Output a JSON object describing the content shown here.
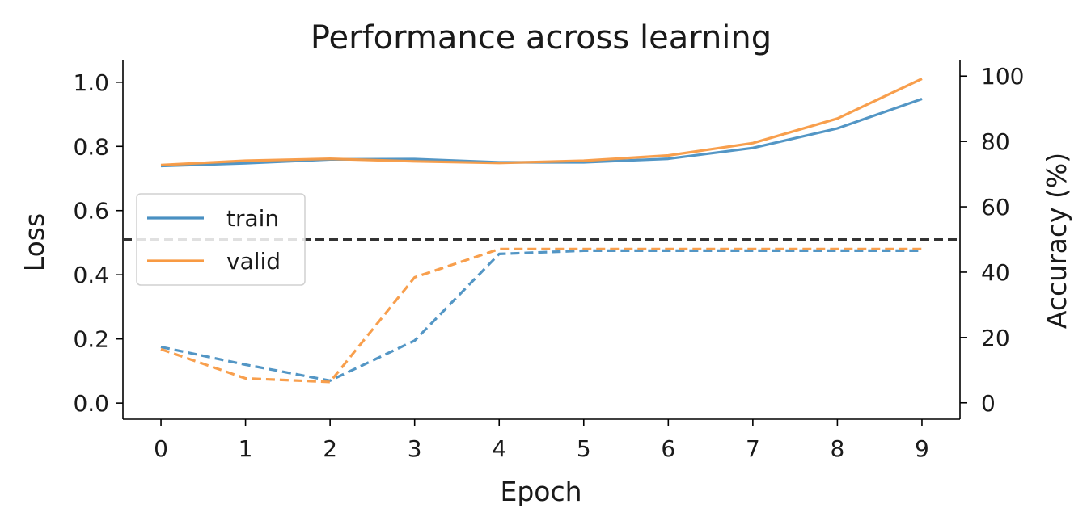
{
  "chart_data": {
    "type": "line",
    "title": "Performance across learning",
    "xlabel": "Epoch",
    "ylabel": "Loss",
    "y2label": "Accuracy (%)",
    "x": [
      0,
      1,
      2,
      3,
      4,
      5,
      6,
      7,
      8,
      9
    ],
    "xticks": [
      0,
      1,
      2,
      3,
      4,
      5,
      6,
      7,
      8,
      9
    ],
    "ylim": [
      -0.05,
      1.07
    ],
    "y2lim": [
      -5,
      105
    ],
    "yticks": [
      "0.0",
      "0.2",
      "0.4",
      "0.6",
      "0.8",
      "1.0"
    ],
    "y2ticks": [
      "0",
      "20",
      "40",
      "60",
      "80",
      "100"
    ],
    "reference_line": {
      "axis": "right",
      "value": 50,
      "style": "dashed",
      "color": "#333333"
    },
    "series": [
      {
        "name": "train",
        "axis": "left",
        "style": "dashed",
        "color": "#4a90c2",
        "values": [
          0.175,
          0.12,
          0.07,
          0.195,
          0.465,
          0.475,
          0.475,
          0.475,
          0.475,
          0.475
        ]
      },
      {
        "name": "valid",
        "axis": "left",
        "style": "dashed",
        "color": "#f89a43",
        "values": [
          0.168,
          0.077,
          0.066,
          0.392,
          0.48,
          0.48,
          0.48,
          0.48,
          0.48,
          0.48
        ]
      },
      {
        "axis": "right",
        "style": "solid",
        "color": "#4a90c2",
        "values": [
          72.5,
          73.3,
          74.5,
          74.6,
          73.6,
          73.6,
          74.7,
          78,
          84,
          93
        ]
      },
      {
        "axis": "right",
        "style": "solid",
        "color": "#f89a43",
        "values": [
          72.8,
          74.1,
          74.7,
          73.9,
          73.4,
          74.1,
          75.7,
          79.5,
          87,
          99.2
        ]
      }
    ],
    "legend": {
      "placement": "center-left",
      "entries": [
        "train",
        "valid"
      ]
    },
    "grid": false
  }
}
